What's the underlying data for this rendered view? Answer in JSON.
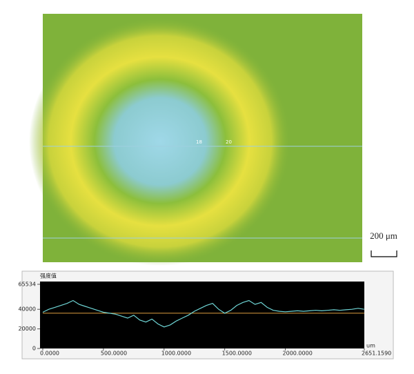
{
  "image": {
    "labels": [
      "18",
      "20"
    ],
    "scale_bar": "200 μm"
  },
  "chart_data": {
    "type": "line",
    "y_label": "强度值",
    "x_unit": "um",
    "x": [
      0,
      50,
      100,
      150,
      200,
      250,
      300,
      350,
      400,
      450,
      500,
      550,
      600,
      650,
      700,
      750,
      800,
      850,
      900,
      950,
      1000,
      1050,
      1100,
      1150,
      1200,
      1250,
      1300,
      1350,
      1400,
      1450,
      1500,
      1550,
      1600,
      1650,
      1700,
      1750,
      1800,
      1850,
      1900,
      1950,
      2000,
      2050,
      2100,
      2150,
      2200,
      2250,
      2300,
      2350,
      2400,
      2450,
      2500,
      2550,
      2600,
      2650
    ],
    "series": [
      {
        "color": "#6fd6d6",
        "values": [
          37000,
          40000,
          42000,
          44000,
          46000,
          49000,
          45000,
          43000,
          41000,
          39000,
          37000,
          36000,
          35000,
          33000,
          31000,
          34000,
          29000,
          27000,
          30000,
          25000,
          22000,
          24000,
          28000,
          31000,
          34000,
          38000,
          41000,
          44000,
          46000,
          40000,
          36000,
          39000,
          44000,
          47000,
          49000,
          45000,
          47000,
          42000,
          39000,
          38000,
          37500,
          38000,
          38500,
          38000,
          38500,
          39000,
          38500,
          39000,
          39500,
          39000,
          39500,
          40000,
          41000,
          40000
        ]
      }
    ],
    "reference_line": {
      "value": 36000,
      "color": "#e0a040"
    },
    "xlim": [
      0,
      2651.159
    ],
    "ylim": [
      0,
      65534
    ],
    "xticks": [
      {
        "value": 0,
        "label": "0.0000"
      },
      {
        "value": 500,
        "label": "500.0000"
      },
      {
        "value": 1000,
        "label": "1000.0000"
      },
      {
        "value": 1500,
        "label": "1500.0000"
      },
      {
        "value": 2000,
        "label": "2000.0000"
      },
      {
        "value": 2651.159,
        "label": "2651.1590"
      }
    ],
    "yticks": [
      0,
      20000,
      40000,
      65534
    ]
  }
}
